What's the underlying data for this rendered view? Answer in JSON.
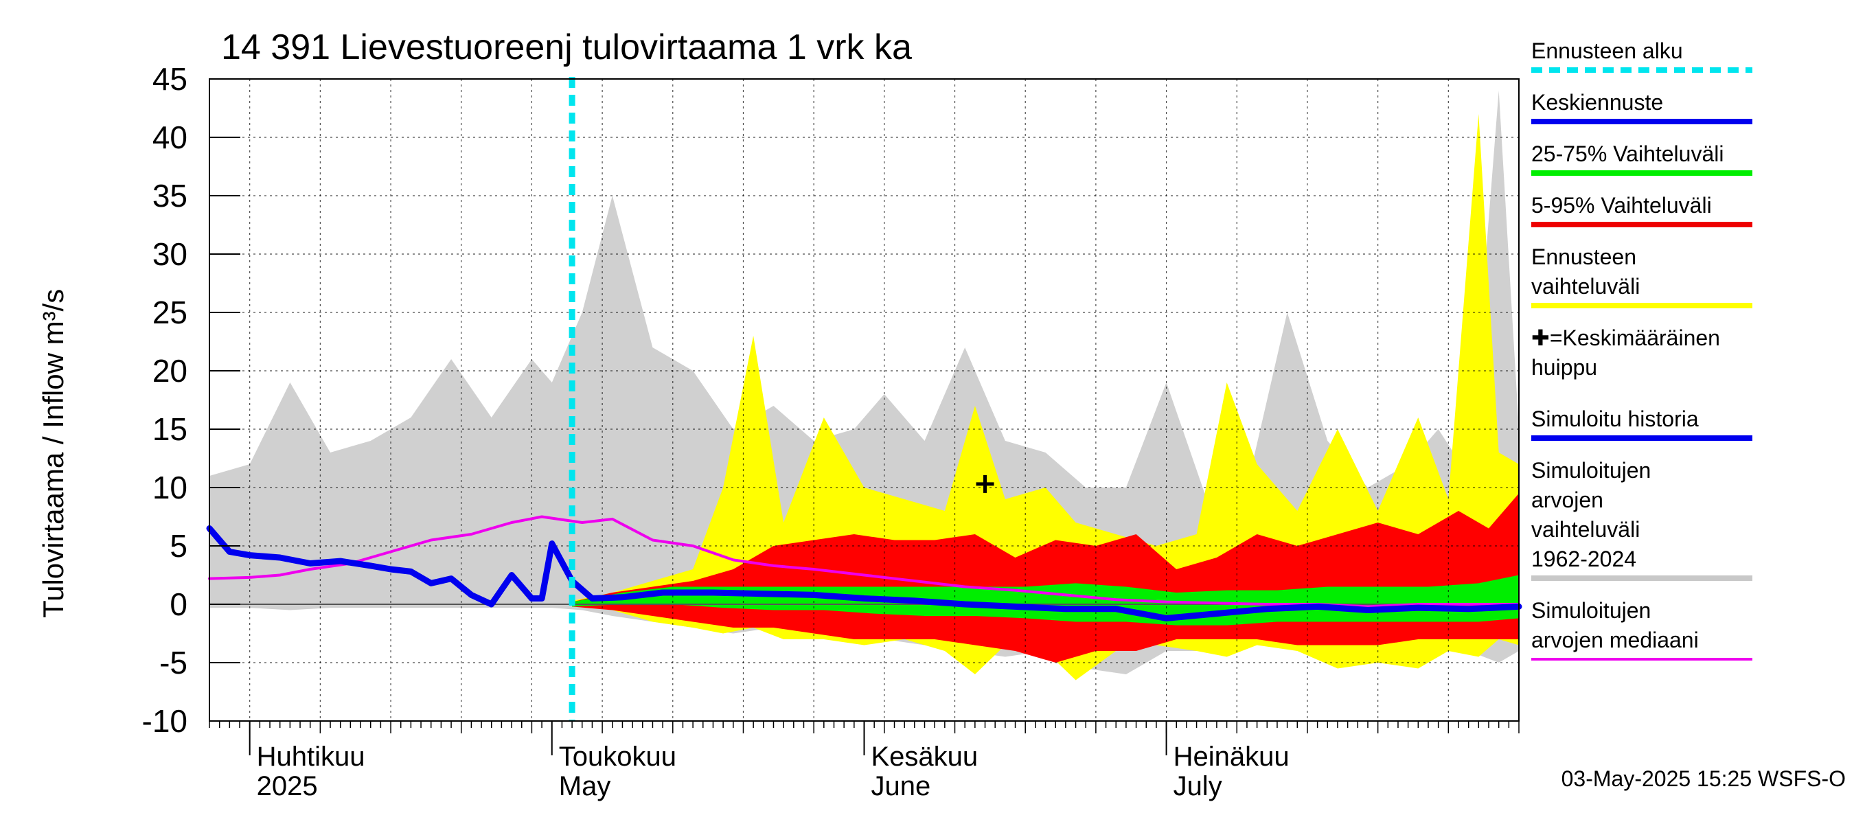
{
  "chart_data": {
    "type": "area",
    "title": "14 391 Lievestuoreenj tulovirtaama 1 vrk ka",
    "ylabel": "Tulovirtaama / Inflow    m³/s",
    "ylim": [
      -10,
      45
    ],
    "yticks": [
      -10,
      -5,
      0,
      5,
      10,
      15,
      20,
      25,
      30,
      35,
      40,
      45
    ],
    "ytick_labels": [
      "-10",
      "-5",
      "0",
      "5",
      "10",
      "15",
      "20",
      "25",
      "30",
      "35",
      "40",
      "45"
    ],
    "x_start": "2025-03-28",
    "x_end": "2025-08-05",
    "forecast_start": "2025-05-03",
    "grid": true,
    "legend_position": "right",
    "months": [
      {
        "date": "2025-04-01",
        "fi": "Huhtikuu",
        "en": "2025"
      },
      {
        "date": "2025-05-01",
        "fi": "Toukokuu",
        "en": "May"
      },
      {
        "date": "2025-06-01",
        "fi": "Kesäkuu",
        "en": "June"
      },
      {
        "date": "2025-07-01",
        "fi": "Heinäkuu",
        "en": "July"
      }
    ],
    "legend": [
      {
        "label": "Ennusteen alku",
        "color": "#00e5ee",
        "style": "dashed"
      },
      {
        "label": "Keskiennuste",
        "color": "#0000ee",
        "style": "line"
      },
      {
        "label": "25-75% Vaihteluväli",
        "color": "#00ee00",
        "style": "line"
      },
      {
        "label": "5-95% Vaihteluväli",
        "color": "#ee0000",
        "style": "line"
      },
      {
        "label": "Ennusteen vaihteluväli",
        "color": "#ffff00",
        "style": "line"
      },
      {
        "label": "✚=Keskimääräinen huippu",
        "color": "#000000",
        "style": "marker"
      },
      {
        "label": "Simuloitu historia",
        "color": "#0000ee",
        "style": "line"
      },
      {
        "label": "Simuloitujen arvojen vaihteluväli 1962-2024",
        "color": "#c8c8c8",
        "style": "line"
      },
      {
        "label": "Simuloitujen arvojen mediaani",
        "color": "#ee00ee",
        "style": "line"
      }
    ],
    "mean_peak": {
      "x": "2025-06-13",
      "y": 10.3
    },
    "series": [
      {
        "name": "Simuloitujen arvojen vaihteluväli 1962-2024",
        "kind": "band",
        "color": "#d0d0d0",
        "x": [
          "2025-03-28",
          "2025-04-01",
          "2025-04-05",
          "2025-04-09",
          "2025-04-13",
          "2025-04-17",
          "2025-04-21",
          "2025-04-25",
          "2025-04-29",
          "2025-05-01",
          "2025-05-04",
          "2025-05-07",
          "2025-05-11",
          "2025-05-15",
          "2025-05-19",
          "2025-05-23",
          "2025-05-27",
          "2025-05-31",
          "2025-06-03",
          "2025-06-07",
          "2025-06-11",
          "2025-06-15",
          "2025-06-19",
          "2025-06-23",
          "2025-06-27",
          "2025-07-01",
          "2025-07-05",
          "2025-07-09",
          "2025-07-13",
          "2025-07-17",
          "2025-07-21",
          "2025-07-25",
          "2025-07-28",
          "2025-07-31",
          "2025-08-03",
          "2025-08-05"
        ],
        "upper": [
          11,
          12,
          19,
          13,
          14,
          16,
          21,
          16,
          21,
          19,
          25,
          35,
          22,
          20,
          15,
          17,
          14,
          15,
          18,
          14,
          22,
          14,
          13,
          10,
          10,
          19,
          9,
          10,
          25,
          14,
          10,
          12,
          15,
          11,
          44,
          15
        ],
        "lower": [
          -0.3,
          -0.3,
          -0.5,
          -0.3,
          -0.3,
          -0.3,
          -0.3,
          -0.3,
          -0.3,
          -0.3,
          -0.5,
          -1,
          -1.5,
          -2,
          -2.5,
          -2,
          -3,
          -3,
          -3,
          -3.5,
          -4,
          -4.5,
          -4,
          -5.5,
          -6,
          -4,
          -4,
          -3.5,
          -3.5,
          -4,
          -5,
          -4,
          -3.5,
          -4,
          -5,
          -4
        ]
      },
      {
        "name": "Ennusteen vaihteluväli",
        "kind": "band",
        "color": "#ffff00",
        "x": [
          "2025-05-03",
          "2025-05-07",
          "2025-05-11",
          "2025-05-15",
          "2025-05-18",
          "2025-05-21",
          "2025-05-24",
          "2025-05-28",
          "2025-06-01",
          "2025-06-05",
          "2025-06-09",
          "2025-06-12",
          "2025-06-15",
          "2025-06-19",
          "2025-06-22",
          "2025-06-26",
          "2025-06-30",
          "2025-07-04",
          "2025-07-07",
          "2025-07-10",
          "2025-07-14",
          "2025-07-18",
          "2025-07-22",
          "2025-07-26",
          "2025-07-29",
          "2025-08-01",
          "2025-08-03",
          "2025-08-05"
        ],
        "upper": [
          0.3,
          1,
          2,
          3,
          10,
          23,
          7,
          16,
          10,
          9,
          8,
          17,
          9,
          10,
          7,
          6,
          5,
          6,
          19,
          12,
          8,
          15,
          8,
          16,
          9,
          42,
          13,
          12
        ],
        "lower": [
          0,
          -0.5,
          -1.5,
          -2,
          -2.5,
          -2,
          -3,
          -3,
          -3.5,
          -3,
          -4,
          -6,
          -3.5,
          -4,
          -6.5,
          -4,
          -3.5,
          -4,
          -4.5,
          -3.5,
          -4,
          -5.5,
          -5,
          -5.5,
          -4,
          -4.5,
          -3,
          -3.5
        ]
      },
      {
        "name": "5-95% Vaihteluväli",
        "kind": "band",
        "color": "#ff0000",
        "x": [
          "2025-05-03",
          "2025-05-07",
          "2025-05-11",
          "2025-05-15",
          "2025-05-19",
          "2025-05-23",
          "2025-05-27",
          "2025-05-31",
          "2025-06-04",
          "2025-06-08",
          "2025-06-12",
          "2025-06-16",
          "2025-06-20",
          "2025-06-24",
          "2025-06-28",
          "2025-07-02",
          "2025-07-06",
          "2025-07-10",
          "2025-07-14",
          "2025-07-18",
          "2025-07-22",
          "2025-07-26",
          "2025-07-30",
          "2025-08-02",
          "2025-08-05"
        ],
        "upper": [
          0.2,
          1,
          1.5,
          2,
          3,
          5,
          5.5,
          6,
          5.5,
          5.5,
          6,
          4,
          5.5,
          5,
          6,
          3,
          4,
          6,
          5,
          6,
          7,
          6,
          8,
          6.5,
          9.5
        ],
        "lower": [
          -0.2,
          -0.5,
          -1,
          -1.5,
          -2,
          -2,
          -2.5,
          -3,
          -3,
          -3,
          -3.5,
          -4,
          -5,
          -4,
          -4,
          -3,
          -3,
          -3,
          -3.5,
          -3.5,
          -3.5,
          -3,
          -3,
          -3,
          -3
        ]
      },
      {
        "name": "25-75% Vaihteluväli",
        "kind": "band",
        "color": "#00ee00",
        "x": [
          "2025-05-03",
          "2025-05-08",
          "2025-05-13",
          "2025-05-18",
          "2025-05-23",
          "2025-05-28",
          "2025-06-02",
          "2025-06-07",
          "2025-06-12",
          "2025-06-17",
          "2025-06-22",
          "2025-06-27",
          "2025-07-02",
          "2025-07-07",
          "2025-07-12",
          "2025-07-17",
          "2025-07-22",
          "2025-07-27",
          "2025-08-01",
          "2025-08-05"
        ],
        "upper": [
          0.2,
          1,
          1.5,
          1.5,
          1.5,
          1.5,
          1.5,
          1.5,
          1.5,
          1.5,
          1.8,
          1.5,
          1,
          1.2,
          1.2,
          1.5,
          1.5,
          1.5,
          1.8,
          2.5
        ],
        "lower": [
          -0.2,
          0,
          0,
          -0.3,
          -0.5,
          -0.5,
          -0.8,
          -1,
          -1,
          -1.2,
          -1.5,
          -1.5,
          -1.8,
          -1.8,
          -1.5,
          -1.5,
          -1.5,
          -1.5,
          -1.5,
          -1.2
        ]
      },
      {
        "name": "Simuloitujen arvojen mediaani",
        "kind": "line",
        "color": "#ee00ee",
        "x": [
          "2025-03-28",
          "2025-04-01",
          "2025-04-04",
          "2025-04-07",
          "2025-04-11",
          "2025-04-15",
          "2025-04-19",
          "2025-04-23",
          "2025-04-27",
          "2025-04-30",
          "2025-05-04",
          "2025-05-07",
          "2025-05-11",
          "2025-05-15",
          "2025-05-19",
          "2025-05-23",
          "2025-05-27",
          "2025-06-01",
          "2025-06-06",
          "2025-06-11",
          "2025-06-16",
          "2025-06-21",
          "2025-06-26",
          "2025-07-01",
          "2025-07-06",
          "2025-07-11",
          "2025-07-16",
          "2025-07-21",
          "2025-07-26",
          "2025-07-31",
          "2025-08-05"
        ],
        "y": [
          2.2,
          2.3,
          2.5,
          3,
          3.5,
          4.5,
          5.5,
          6,
          7,
          7.5,
          7,
          7.3,
          5.5,
          5,
          3.8,
          3.3,
          3,
          2.5,
          2,
          1.5,
          1.2,
          0.8,
          0.4,
          0.2,
          0.1,
          0,
          0,
          -0.2,
          0,
          0,
          0
        ]
      },
      {
        "name": "Simuloitu historia",
        "kind": "line",
        "color": "#0000ee",
        "x": [
          "2025-03-28",
          "2025-03-30",
          "2025-04-01",
          "2025-04-04",
          "2025-04-07",
          "2025-04-10",
          "2025-04-13",
          "2025-04-15",
          "2025-04-17",
          "2025-04-19",
          "2025-04-21",
          "2025-04-23",
          "2025-04-25",
          "2025-04-27",
          "2025-04-29",
          "2025-04-30",
          "2025-05-01",
          "2025-05-03"
        ],
        "y": [
          6.5,
          4.5,
          4.2,
          4,
          3.5,
          3.7,
          3.3,
          3,
          2.8,
          1.8,
          2.2,
          0.8,
          0,
          2.5,
          0.5,
          0.5,
          5.2,
          2
        ]
      },
      {
        "name": "Keskiennuste",
        "kind": "line",
        "color": "#0000ee",
        "x": [
          "2025-05-03",
          "2025-05-05",
          "2025-05-08",
          "2025-05-12",
          "2025-05-17",
          "2025-05-22",
          "2025-05-27",
          "2025-06-01",
          "2025-06-06",
          "2025-06-11",
          "2025-06-16",
          "2025-06-21",
          "2025-06-26",
          "2025-07-01",
          "2025-07-06",
          "2025-07-11",
          "2025-07-16",
          "2025-07-21",
          "2025-07-26",
          "2025-07-31",
          "2025-08-05"
        ],
        "y": [
          2,
          0.5,
          0.6,
          1,
          1,
          0.9,
          0.8,
          0.5,
          0.3,
          0,
          -0.2,
          -0.4,
          -0.4,
          -1.2,
          -0.8,
          -0.4,
          -0.2,
          -0.5,
          -0.3,
          -0.4,
          -0.2
        ]
      }
    ]
  },
  "footer": "03-May-2025 15:25 WSFS-O"
}
